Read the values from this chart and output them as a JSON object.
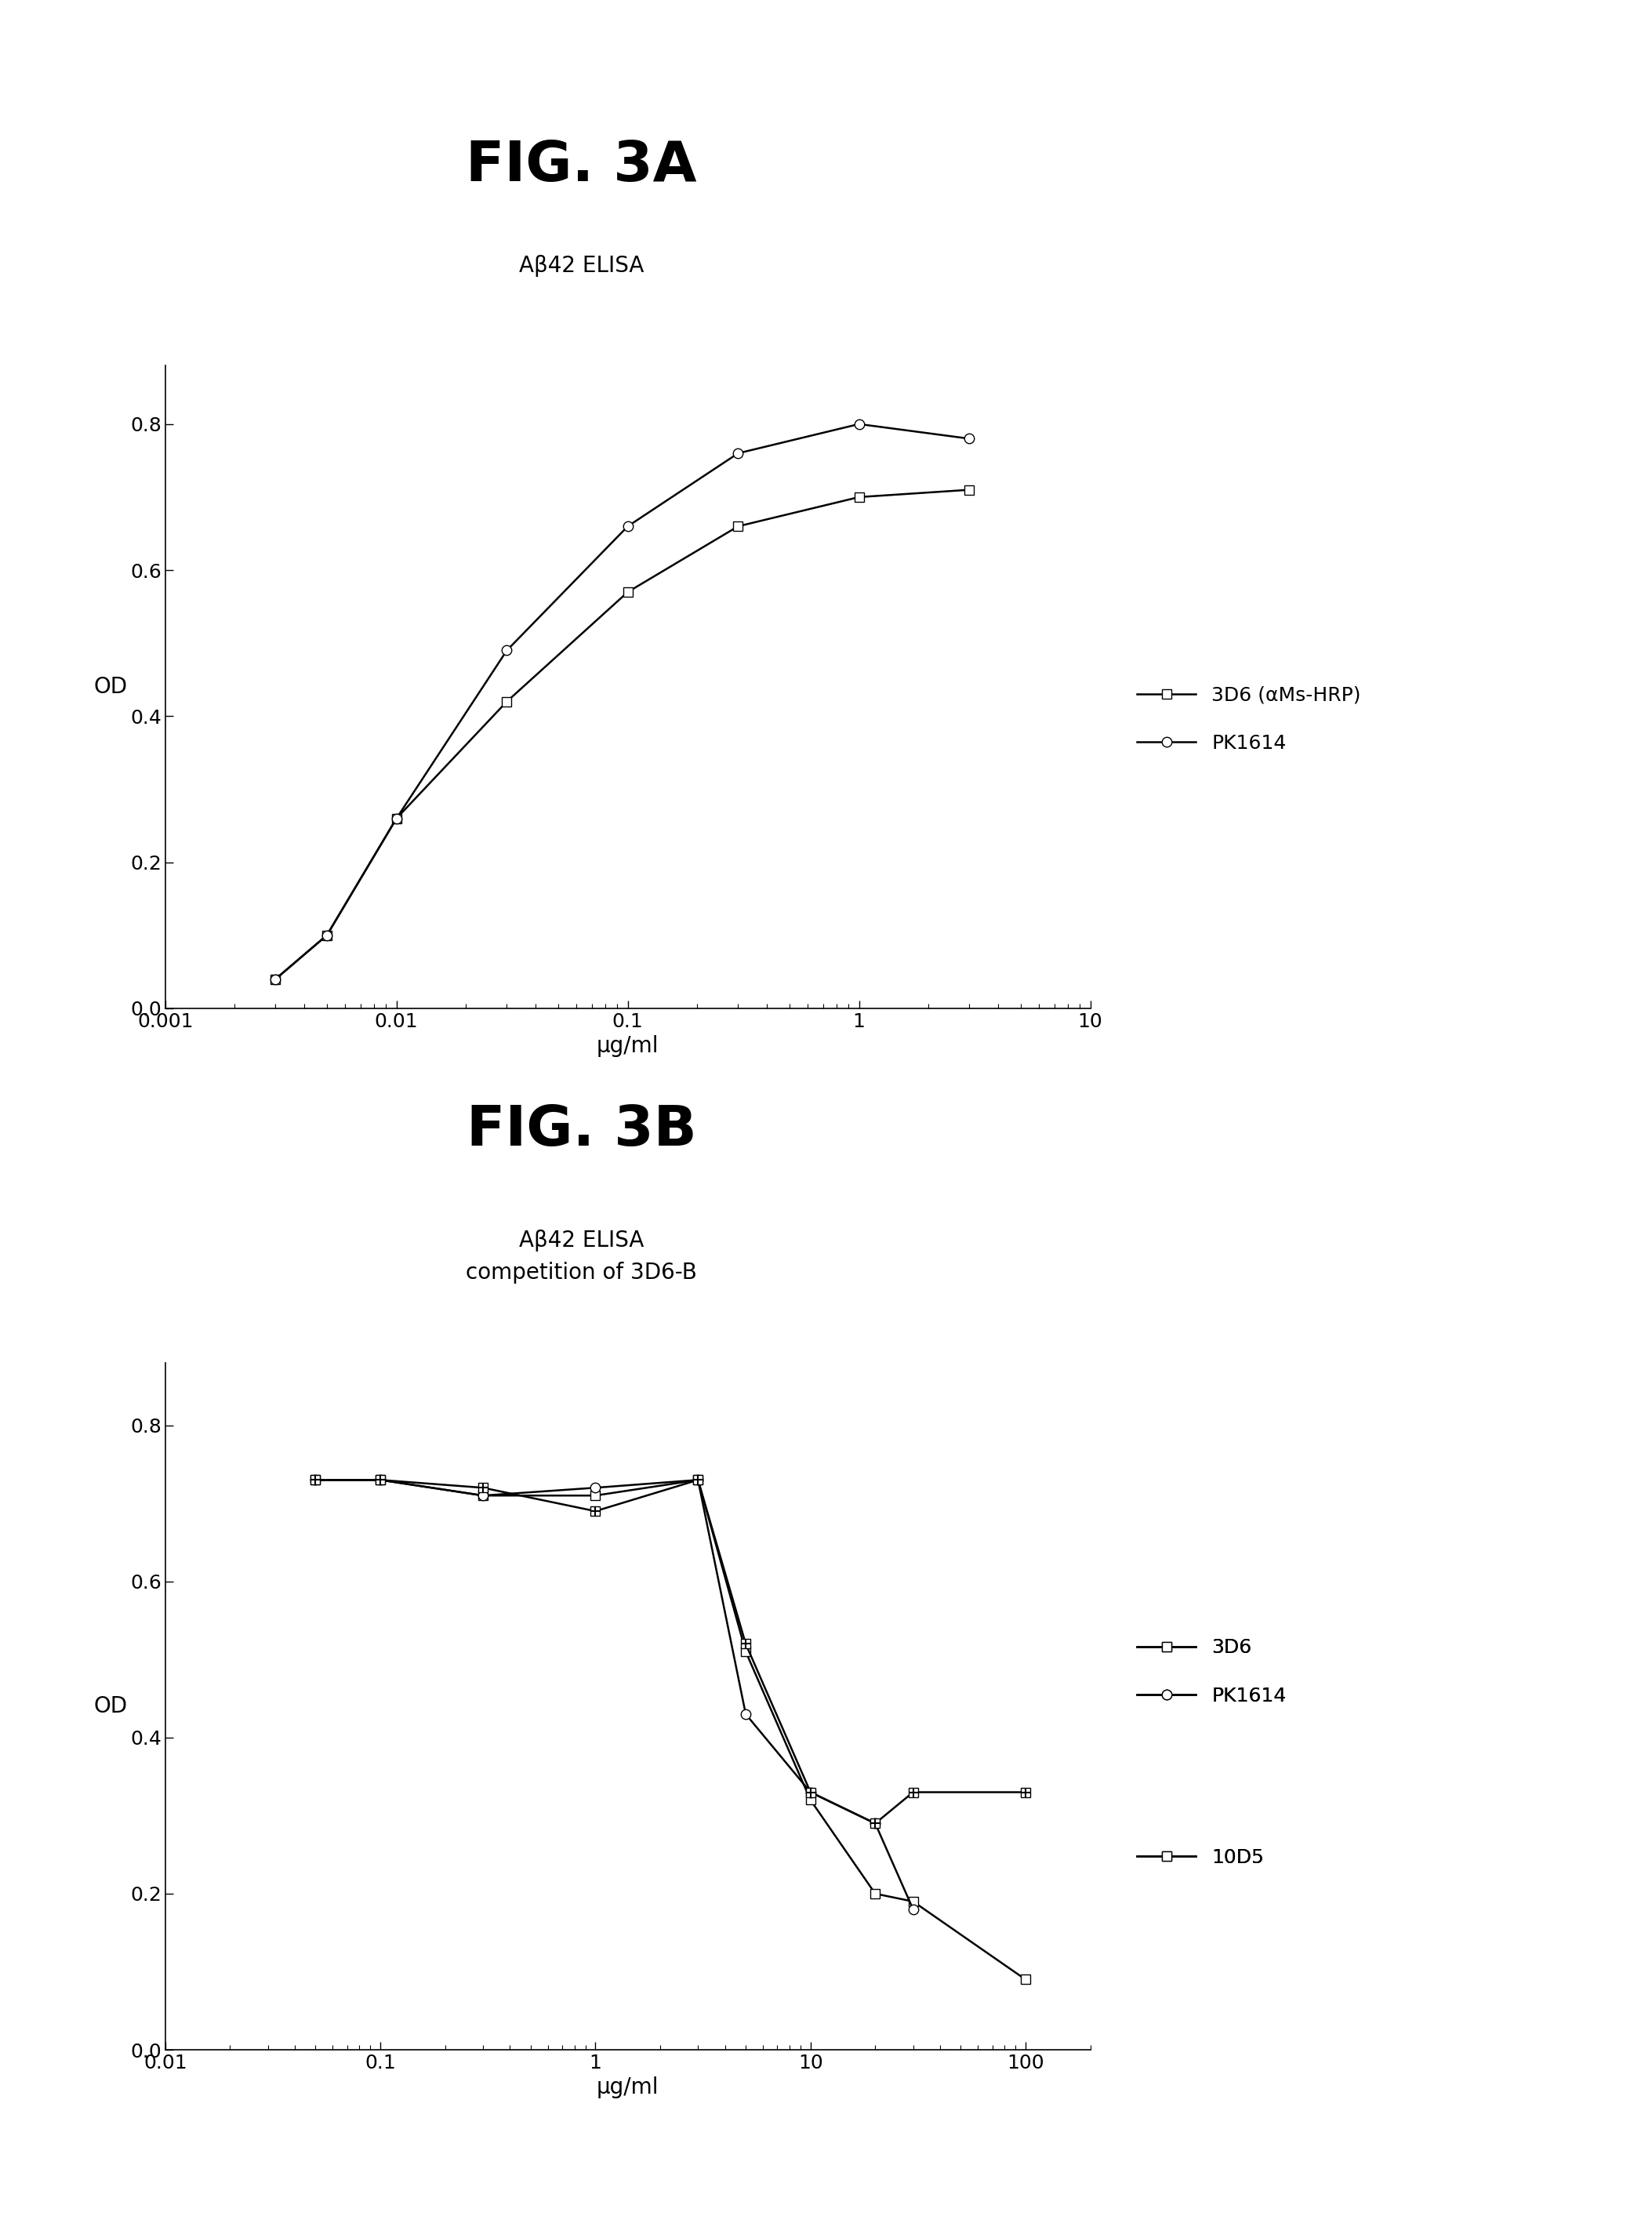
{
  "fig3a": {
    "title": "FIG. 3A",
    "subtitle": "Aβ42 ELISA",
    "xlabel": "μg/ml",
    "ylabel": "OD",
    "xlim": [
      0.001,
      10
    ],
    "ylim": [
      0,
      0.88
    ],
    "yticks": [
      0,
      0.2,
      0.4,
      0.6,
      0.8
    ],
    "xticks": [
      0.001,
      0.01,
      0.1,
      1,
      10
    ],
    "xticklabels": [
      "0.001",
      "0.01",
      "0.1",
      "1",
      "10"
    ],
    "series": [
      {
        "label": "3D6 (αMs-HRP)",
        "x": [
          0.003,
          0.005,
          0.01,
          0.03,
          0.1,
          0.3,
          1,
          3
        ],
        "y": [
          0.04,
          0.1,
          0.26,
          0.42,
          0.57,
          0.66,
          0.7,
          0.71
        ],
        "marker": "s",
        "linestyle": "-",
        "color": "#000000",
        "markersize": 9,
        "markerfacecolor": "white"
      },
      {
        "label": "PK1614",
        "x": [
          0.003,
          0.005,
          0.01,
          0.03,
          0.1,
          0.3,
          1,
          3
        ],
        "y": [
          0.04,
          0.1,
          0.26,
          0.49,
          0.66,
          0.76,
          0.8,
          0.78
        ],
        "marker": "o",
        "linestyle": "-",
        "color": "#000000",
        "markersize": 9,
        "markerfacecolor": "white"
      }
    ]
  },
  "fig3b": {
    "title": "FIG. 3B",
    "subtitle": "Aβ42 ELISA\ncompetition of 3D6-B",
    "xlabel": "μg/ml",
    "ylabel": "OD",
    "xlim": [
      0.01,
      200
    ],
    "ylim": [
      0,
      0.88
    ],
    "yticks": [
      0,
      0.2,
      0.4,
      0.6,
      0.8
    ],
    "xticks": [
      0.01,
      0.1,
      1,
      10,
      100
    ],
    "xticklabels": [
      "0.01",
      "0.1",
      "1",
      "10",
      "100"
    ],
    "series": [
      {
        "label": "3D6",
        "x": [
          0.05,
          0.1,
          0.3,
          1,
          3,
          5,
          10,
          20,
          30,
          100
        ],
        "y": [
          0.73,
          0.73,
          0.71,
          0.71,
          0.73,
          0.51,
          0.32,
          0.2,
          0.19,
          0.09
        ],
        "marker": "s",
        "linestyle": "-",
        "color": "#000000",
        "markersize": 9,
        "markerfacecolor": "white"
      },
      {
        "label": "PK1614",
        "x": [
          0.05,
          0.1,
          0.3,
          1,
          3,
          5,
          10,
          20,
          30
        ],
        "y": [
          0.73,
          0.73,
          0.71,
          0.72,
          0.73,
          0.43,
          0.33,
          0.29,
          0.18
        ],
        "marker": "o",
        "linestyle": "-",
        "color": "#000000",
        "markersize": 9,
        "markerfacecolor": "white"
      },
      {
        "label": "10D5",
        "x": [
          0.05,
          0.1,
          0.3,
          1,
          3,
          5,
          10,
          20,
          30,
          100
        ],
        "y": [
          0.73,
          0.73,
          0.72,
          0.69,
          0.73,
          0.52,
          0.33,
          0.29,
          0.33,
          0.33
        ],
        "marker": "s",
        "linestyle": "-",
        "color": "#000000",
        "markersize": 9,
        "markerfacecolor": "white"
      }
    ]
  },
  "background_color": "#ffffff",
  "title_fontsize": 52,
  "subtitle_fontsize": 20,
  "axis_label_fontsize": 20,
  "tick_fontsize": 18,
  "legend_fontsize": 18,
  "line_width": 1.8
}
